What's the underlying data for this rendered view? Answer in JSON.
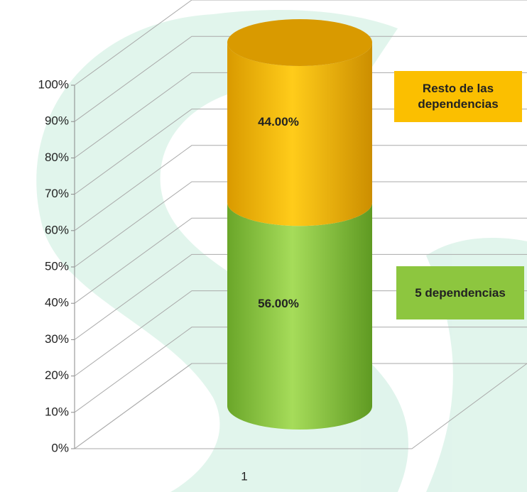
{
  "chart_data": {
    "type": "cylinder_stacked",
    "categories": [
      "1"
    ],
    "series": [
      {
        "name": "5 dependencias",
        "color": "#8dc63f",
        "values": [
          56
        ],
        "value_labels": [
          "56.00%"
        ]
      },
      {
        "name": "Resto de las dependencias",
        "color": "#fbbf00",
        "values": [
          44
        ],
        "value_labels": [
          "44.00%"
        ]
      }
    ],
    "ylim": [
      0,
      100
    ],
    "yticks": [
      {
        "value": 0,
        "label": "0%"
      },
      {
        "value": 10,
        "label": "10%"
      },
      {
        "value": 20,
        "label": "20%"
      },
      {
        "value": 30,
        "label": "30%"
      },
      {
        "value": 40,
        "label": "40%"
      },
      {
        "value": 50,
        "label": "50%"
      },
      {
        "value": 60,
        "label": "60%"
      },
      {
        "value": 70,
        "label": "70%"
      },
      {
        "value": 80,
        "label": "80%"
      },
      {
        "value": 90,
        "label": "90%"
      },
      {
        "value": 100,
        "label": "100%"
      }
    ],
    "grid": true,
    "legend": "right"
  }
}
